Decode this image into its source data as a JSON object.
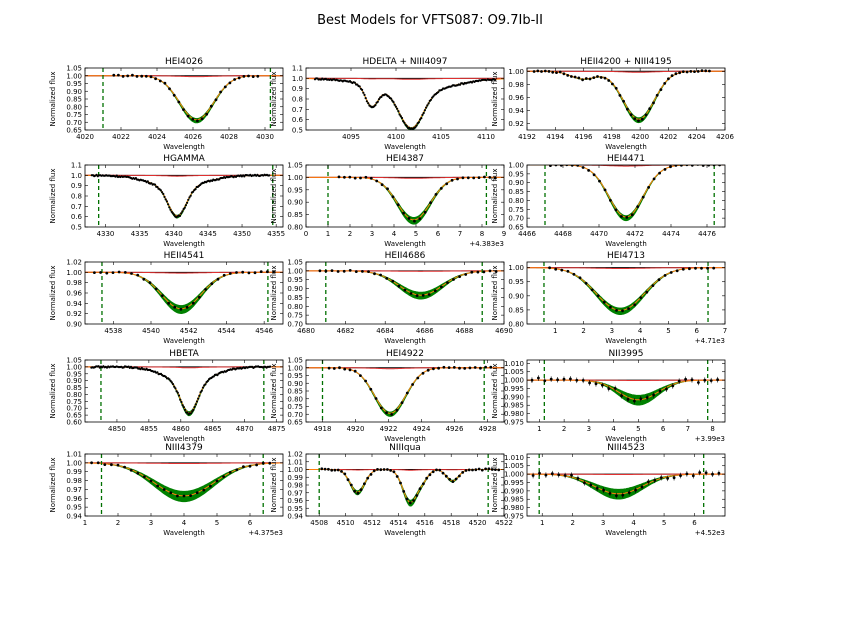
{
  "figure": {
    "title": "Best Models for VFTS087: O9.7Ib-II",
    "colors": {
      "model_band": "#008000",
      "best_model": "#ff7f0e",
      "continuum_model": "#e03030",
      "unity_line": "#000000",
      "window": "#007000",
      "data": "#000000"
    }
  },
  "chart_data": [
    {
      "type": "line",
      "title": "HEI4026",
      "xlabel": "Wavelength",
      "ylabel": "Normalized flux",
      "xlim": [
        4020,
        4031
      ],
      "ylim": [
        0.65,
        1.05
      ],
      "xticks": [
        "4020",
        "4022",
        "4024",
        "4026",
        "4028",
        "4030"
      ],
      "yticks": [
        "0.65",
        "0.70",
        "0.75",
        "0.80",
        "0.85",
        "0.90",
        "0.95",
        "1.00",
        "1.05"
      ],
      "windows": [
        4021.0,
        4030.3
      ],
      "lines": [
        {
          "center": 4026.2,
          "depth": 0.29,
          "width": 0.95
        }
      ],
      "band_spread": 0.015,
      "errors": false,
      "points_range": [
        4021.6,
        4029.6
      ],
      "points_n": 32
    },
    {
      "type": "line",
      "title": "HDELTA + NIII4097",
      "xlabel": "Wavelength",
      "ylabel": "Normalized flux",
      "xlim": [
        4090,
        4112
      ],
      "ylim": [
        0.5,
        1.1
      ],
      "xticks": [
        "4095",
        "4100",
        "4105",
        "4110"
      ],
      "yticks": [
        "0.5",
        "0.6",
        "0.7",
        "0.8",
        "0.9",
        "1.0",
        "1.1"
      ],
      "windows": [],
      "lines": [
        {
          "center": 4101.7,
          "depth": 0.35,
          "width": 1.3
        },
        {
          "center": 4097.3,
          "depth": 0.2,
          "width": 0.7
        },
        {
          "center": 4101.7,
          "depth": 0.14,
          "width": 4.0
        }
      ],
      "band_spread": 0.01,
      "errors": false,
      "points_range": [
        4091,
        4111
      ],
      "points_n": 150
    },
    {
      "type": "line",
      "title": "HEII4200 + NIII4195",
      "xlabel": "Wavelength",
      "ylabel": "Normalized flux",
      "xlim": [
        4192,
        4206
      ],
      "ylim": [
        0.91,
        1.005
      ],
      "xticks": [
        "4192",
        "4194",
        "4196",
        "4198",
        "4200",
        "4202",
        "4204",
        "4206"
      ],
      "yticks": [
        "0.92",
        "0.94",
        "0.96",
        "0.98",
        "1.00"
      ],
      "windows": [],
      "lines": [
        {
          "center": 4199.9,
          "depth": 0.075,
          "width": 1.1
        },
        {
          "center": 4196.0,
          "depth": 0.012,
          "width": 0.9
        }
      ],
      "band_spread": 0.004,
      "errors": false,
      "points_range": [
        4192.5,
        4204.9
      ],
      "points_n": 48
    },
    {
      "type": "line",
      "title": "HGAMMA",
      "xlabel": "Wavelength",
      "ylabel": "Normalized flux",
      "xlim": [
        4327,
        4356
      ],
      "ylim": [
        0.5,
        1.1
      ],
      "xticks": [
        "4330",
        "4335",
        "4340",
        "4345",
        "4350",
        "4355"
      ],
      "yticks": [
        "0.5",
        "0.6",
        "0.7",
        "0.8",
        "0.9",
        "1.0",
        "1.1"
      ],
      "windows": [
        4329.0,
        4354.5
      ],
      "lines": [
        {
          "center": 4340.5,
          "depth": 0.28,
          "width": 1.3
        },
        {
          "center": 4340.5,
          "depth": 0.12,
          "width": 3.8
        }
      ],
      "band_spread": 0.01,
      "errors": false,
      "points_range": [
        4328,
        4354
      ],
      "points_n": 150
    },
    {
      "type": "line",
      "title": "HEI4387",
      "xlabel": "Wavelength",
      "ylabel": "Normalized flux",
      "xlim": [
        0,
        9
      ],
      "ylim": [
        0.8,
        1.05
      ],
      "xticks": [
        "0",
        "1",
        "2",
        "3",
        "4",
        "5",
        "6",
        "7",
        "8",
        "9"
      ],
      "yticks": [
        "0.80",
        "0.85",
        "0.90",
        "0.95",
        "1.00",
        "1.05"
      ],
      "x_offset": "+4.383e3",
      "windows": [
        1.0,
        8.2
      ],
      "lines": [
        {
          "center": 4.9,
          "depth": 0.175,
          "width": 0.75
        }
      ],
      "band_spread": 0.014,
      "errors": false,
      "points_range": [
        1.5,
        8.6
      ],
      "points_n": 30
    },
    {
      "type": "line",
      "title": "HEI4471",
      "xlabel": "Wavelength",
      "ylabel": "Normalized flux",
      "xlim": [
        4466,
        4477
      ],
      "ylim": [
        0.65,
        1.0
      ],
      "xticks": [
        "4466",
        "4468",
        "4470",
        "4472",
        "4474",
        "4476"
      ],
      "yticks": [
        "0.65",
        "0.70",
        "0.75",
        "0.80",
        "0.85",
        "0.90",
        "0.95",
        "1.00"
      ],
      "windows": [
        4467.0,
        4476.4
      ],
      "lines": [
        {
          "center": 4471.5,
          "depth": 0.3,
          "width": 0.95
        }
      ],
      "band_spread": 0.015,
      "errors": false,
      "points_range": [
        4467.3,
        4476.7
      ],
      "points_n": 32
    },
    {
      "type": "line",
      "title": "HEII4541",
      "xlabel": "Wavelength",
      "ylabel": "Normalized flux",
      "xlim": [
        4536.5,
        4547
      ],
      "ylim": [
        0.9,
        1.02
      ],
      "xticks": [
        "4538",
        "4540",
        "4542",
        "4544",
        "4546"
      ],
      "yticks": [
        "0.90",
        "0.92",
        "0.94",
        "0.96",
        "0.98",
        "1.00",
        "1.02"
      ],
      "windows": [
        4537.4,
        4546.2
      ],
      "lines": [
        {
          "center": 4541.6,
          "depth": 0.072,
          "width": 1.05
        }
      ],
      "band_spread": 0.008,
      "errors": false,
      "points_range": [
        4537.0,
        4546.5
      ],
      "points_n": 30
    },
    {
      "type": "line",
      "title": "HEII4686",
      "xlabel": "Wavelength",
      "ylabel": "Normalized flux",
      "xlim": [
        4680,
        4690
      ],
      "ylim": [
        0.7,
        1.05
      ],
      "xticks": [
        "4680",
        "4682",
        "4684",
        "4686",
        "4688",
        "4690"
      ],
      "yticks": [
        "0.70",
        "0.75",
        "0.80",
        "0.85",
        "0.90",
        "0.95",
        "1.00",
        "1.05"
      ],
      "windows": [
        4681.0,
        4688.9
      ],
      "lines": [
        {
          "center": 4685.8,
          "depth": 0.14,
          "width": 1.1
        }
      ],
      "band_spread": 0.02,
      "errors": false,
      "points_range": [
        4680.7,
        4689.6
      ],
      "points_n": 30
    },
    {
      "type": "line",
      "title": "HEI4713",
      "xlabel": "Wavelength",
      "ylabel": "Normalized flux",
      "xlim": [
        0,
        7
      ],
      "ylim": [
        0.8,
        1.02
      ],
      "xticks": [
        "1",
        "2",
        "3",
        "4",
        "5",
        "6",
        "7"
      ],
      "yticks": [
        "0.80",
        "0.85",
        "0.90",
        "0.95",
        "1.00"
      ],
      "x_offset": "+4.71e3",
      "windows": [
        0.6,
        6.4
      ],
      "lines": [
        {
          "center": 3.3,
          "depth": 0.155,
          "width": 0.85
        }
      ],
      "band_spread": 0.012,
      "errors": false,
      "points_range": [
        0.8,
        6.6
      ],
      "points_n": 28
    },
    {
      "type": "line",
      "title": "HBETA",
      "xlabel": "Wavelength",
      "ylabel": "Normalized flux",
      "xlim": [
        4845,
        4876
      ],
      "ylim": [
        0.6,
        1.05
      ],
      "xticks": [
        "4850",
        "4855",
        "4860",
        "4865",
        "4870",
        "4875"
      ],
      "yticks": [
        "0.60",
        "0.65",
        "0.70",
        "0.75",
        "0.80",
        "0.85",
        "0.90",
        "0.95",
        "1.00",
        "1.05"
      ],
      "windows": [
        4847.5,
        4873.0
      ],
      "lines": [
        {
          "center": 4861.3,
          "depth": 0.22,
          "width": 1.3
        },
        {
          "center": 4861.3,
          "depth": 0.12,
          "width": 3.5
        }
      ],
      "band_spread": 0.01,
      "errors": false,
      "points_range": [
        4846,
        4874
      ],
      "points_n": 150
    },
    {
      "type": "line",
      "title": "HEI4922",
      "xlabel": "Wavelength",
      "ylabel": "Normalized flux",
      "xlim": [
        4917,
        4929
      ],
      "ylim": [
        0.65,
        1.05
      ],
      "xticks": [
        "4918",
        "4920",
        "4922",
        "4924",
        "4926",
        "4928"
      ],
      "yticks": [
        "0.65",
        "0.70",
        "0.75",
        "0.80",
        "0.85",
        "0.90",
        "0.95",
        "1.00",
        "1.05"
      ],
      "windows": [
        4918.0,
        4927.8
      ],
      "lines": [
        {
          "center": 4922.1,
          "depth": 0.3,
          "width": 0.95
        }
      ],
      "band_spread": 0.015,
      "errors": false,
      "points_range": [
        4918.4,
        4928.2
      ],
      "points_n": 32
    },
    {
      "type": "line",
      "title": "NII3995",
      "xlabel": "Wavelength",
      "ylabel": "Normalized flux",
      "xlim": [
        0.5,
        8.5
      ],
      "ylim": [
        0.975,
        1.012
      ],
      "xticks": [
        "1",
        "2",
        "3",
        "4",
        "5",
        "6",
        "7",
        "8"
      ],
      "yticks": [
        "0.975",
        "0.980",
        "0.985",
        "0.990",
        "0.995",
        "1.000",
        "1.005",
        "1.010"
      ],
      "x_offset": "+3.99e3",
      "windows": [
        1.2,
        7.8
      ],
      "lines": [
        {
          "center": 5.0,
          "depth": 0.012,
          "width": 0.8
        }
      ],
      "band_spread": 0.003,
      "errors": true,
      "points_range": [
        0.7,
        8.2
      ],
      "points_n": 30
    },
    {
      "type": "line",
      "title": "NIII4379",
      "xlabel": "Wavelength",
      "ylabel": "Normalized flux",
      "xlim": [
        1,
        7
      ],
      "ylim": [
        0.94,
        1.01
      ],
      "xticks": [
        "1",
        "2",
        "3",
        "4",
        "5",
        "6"
      ],
      "yticks": [
        "0.94",
        "0.95",
        "0.96",
        "0.97",
        "0.98",
        "0.99",
        "1.00",
        "1.01"
      ],
      "x_offset": "+4.375e3",
      "windows": [
        1.5,
        6.4
      ],
      "lines": [
        {
          "center": 4.0,
          "depth": 0.038,
          "width": 0.9
        }
      ],
      "band_spread": 0.006,
      "errors": false,
      "points_range": [
        1.2,
        6.6
      ],
      "points_n": 28
    },
    {
      "type": "line",
      "title": "NIIIqua",
      "xlabel": "Wavelength",
      "ylabel": "Normalized flux",
      "xlim": [
        4507,
        4522
      ],
      "ylim": [
        0.94,
        1.02
      ],
      "xticks": [
        "4508",
        "4510",
        "4512",
        "4514",
        "4516",
        "4518",
        "4520",
        "4522"
      ],
      "yticks": [
        "0.94",
        "0.95",
        "0.96",
        "0.97",
        "0.98",
        "0.99",
        "1.00",
        "1.01",
        "1.02"
      ],
      "windows": [
        4508.0,
        4520.8
      ],
      "lines": [
        {
          "center": 4510.9,
          "depth": 0.03,
          "width": 0.55
        },
        {
          "center": 4514.9,
          "depth": 0.043,
          "width": 0.55
        },
        {
          "center": 4518.1,
          "depth": 0.015,
          "width": 0.45
        },
        {
          "center": 4515.9,
          "depth": 0.01,
          "width": 0.4
        }
      ],
      "band_spread": 0.004,
      "errors": false,
      "points_range": [
        4508.2,
        4521.6
      ],
      "points_n": 55
    },
    {
      "type": "line",
      "title": "NIII4523",
      "xlabel": "Wavelength",
      "ylabel": "Normalized flux",
      "xlim": [
        0.5,
        7
      ],
      "ylim": [
        0.975,
        1.012
      ],
      "xticks": [
        "1",
        "2",
        "3",
        "4",
        "5",
        "6"
      ],
      "yticks": [
        "0.975",
        "0.980",
        "0.985",
        "0.990",
        "0.995",
        "1.000",
        "1.005",
        "1.010"
      ],
      "x_offset": "+4.52e3",
      "windows": [
        0.9,
        6.3
      ],
      "lines": [
        {
          "center": 3.5,
          "depth": 0.012,
          "width": 0.8
        }
      ],
      "band_spread": 0.003,
      "errors": true,
      "points_range": [
        0.7,
        6.8
      ],
      "points_n": 30
    }
  ]
}
